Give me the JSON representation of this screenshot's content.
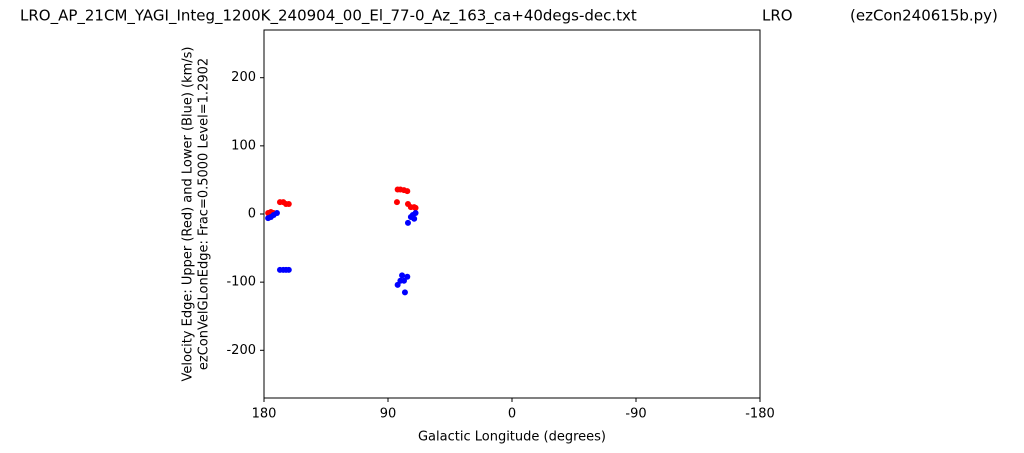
{
  "chart_data": {
    "type": "scatter",
    "titles": [
      "LRO_AP_21CM_YAGI_Integ_1200K_240904_00_El_77-0_Az_163_ca+40degs-dec.txt",
      "LRO",
      "(ezCon240615b.py)"
    ],
    "xlabel": "Galactic Longitude (degrees)",
    "ylabel": [
      "Velocity Edge: Upper (Red) and Lower (Blue) (km/s)",
      "ezConVelGLonEdge: Frac=0.5000 Level=1.2902"
    ],
    "xlim": [
      180,
      -180
    ],
    "xticks": [
      180,
      90,
      0,
      -90,
      -180
    ],
    "ylim": [
      -270,
      270
    ],
    "yticks": [
      -200,
      -100,
      0,
      100,
      200
    ],
    "series": [
      {
        "color": "#ff0000",
        "x": [
          177,
          175,
          173,
          168.4,
          166,
          164,
          162,
          83,
          81,
          78.4,
          76,
          83.5,
          75.5,
          73.4,
          71,
          70
        ],
        "values": [
          1.5,
          3,
          1.5,
          17.5,
          17.5,
          14.6,
          14.6,
          36,
          36,
          35,
          33.6,
          17.5,
          14.6,
          10,
          10,
          9
        ]
      },
      {
        "color": "#0000ff",
        "x": [
          177,
          175,
          173,
          170.6,
          168.4,
          166,
          164,
          162,
          83,
          81,
          79.8,
          78.4,
          76,
          77.7,
          75.5,
          73.4,
          72,
          70,
          71
        ],
        "values": [
          -6,
          -4.4,
          -1.5,
          1.5,
          -82,
          -82,
          -82,
          -82,
          -104,
          -98,
          -90,
          -98,
          -92,
          -115,
          -13,
          -4.4,
          -1.5,
          1.5,
          -7
        ]
      }
    ]
  }
}
